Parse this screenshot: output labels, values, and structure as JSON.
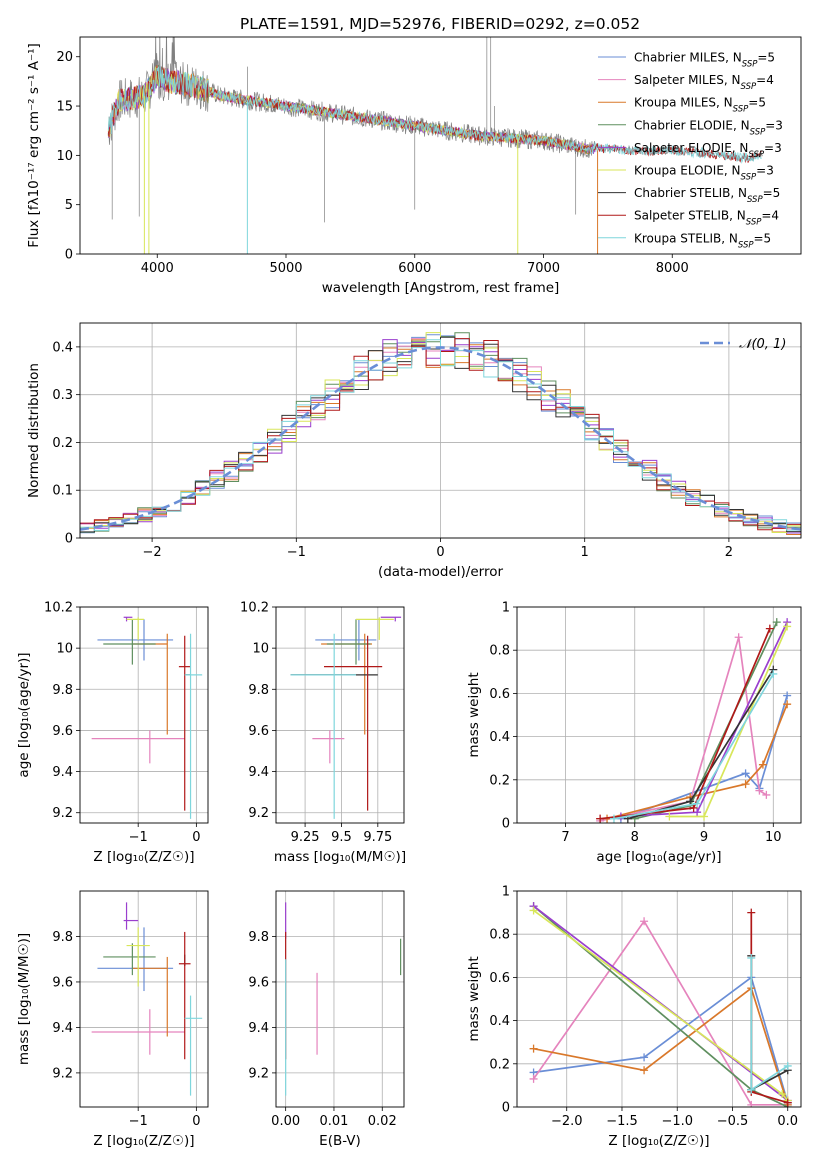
{
  "figure": {
    "title": "PLATE=1591, MJD=52976, FIBERID=0292, z=0.052"
  },
  "series": [
    {
      "name": "Chabrier MILES",
      "nssp": "5",
      "color": "#6a8ed6"
    },
    {
      "name": "Salpeter MILES",
      "nssp": "4",
      "color": "#e584bd"
    },
    {
      "name": "Kroupa MILES",
      "nssp": "5",
      "color": "#d9782a"
    },
    {
      "name": "Chabrier ELODIE",
      "nssp": "3",
      "color": "#5f8f5f"
    },
    {
      "name": "Salpeter ELODIE",
      "nssp": "3",
      "color": "#9a3fce"
    },
    {
      "name": "Kroupa ELODIE",
      "nssp": "3",
      "color": "#d8e65a"
    },
    {
      "name": "Chabrier STELIB",
      "nssp": "5",
      "color": "#333333"
    },
    {
      "name": "Salpeter STELIB",
      "nssp": "4",
      "color": "#b01818"
    },
    {
      "name": "Kroupa STELIB",
      "nssp": "5",
      "color": "#7fd6dc"
    }
  ],
  "chart_data": [
    {
      "id": "spectrum",
      "type": "line",
      "xlabel": "wavelength [Angstrom, rest frame]",
      "ylabel": "Flux [fλ10⁻¹⁷ erg cm⁻² s⁻¹ A⁻¹]",
      "xlim": [
        3400,
        9000
      ],
      "ylim": [
        0,
        22
      ],
      "xticks": [
        4000,
        5000,
        6000,
        7000,
        8000
      ],
      "yticks": [
        0,
        5,
        10,
        15,
        20
      ],
      "data_color": "#808080",
      "continuum_x": [
        3620,
        3700,
        3900,
        4000,
        4100,
        4300,
        4500,
        5000,
        5500,
        6000,
        6500,
        7000,
        7400
      ],
      "continuum_y": [
        12.5,
        15.5,
        16,
        18,
        17.5,
        17,
        16,
        15,
        14,
        13,
        12,
        11.5,
        10.5
      ],
      "tail_x": [
        7400,
        7600,
        7800,
        8000,
        8200,
        8400,
        8600,
        8700
      ],
      "tail_y": [
        10.8,
        10.6,
        10.4,
        10.5,
        10.3,
        10.0,
        9.7,
        10.2
      ],
      "legend_loc": "upper right",
      "grid": false
    },
    {
      "id": "residuals",
      "type": "line",
      "xlabel": "(data-model)/error",
      "ylabel": "Normed distribution",
      "xlim": [
        -2.5,
        2.5
      ],
      "ylim": [
        0,
        0.45
      ],
      "xticks": [
        -2,
        -1,
        0,
        1,
        2
      ],
      "yticks": [
        0,
        0.1,
        0.2,
        0.3,
        0.4
      ],
      "gaussian_label": "𝒩(0, 1)",
      "gaussian_color": "#6a8ed6",
      "gaussian_mu": 0,
      "gaussian_sigma": 1,
      "bin_width": 0.1,
      "grid": true,
      "legend_loc": "upper right"
    },
    {
      "id": "age_vs_z",
      "type": "scatter",
      "xlabel": "Z [log₁₀(Z/Z☉)]",
      "ylabel": "age  [log₁₀(age/yr)]",
      "xlim": [
        -2,
        0.2
      ],
      "ylim": [
        9.15,
        10.2
      ],
      "xticks": [
        -1,
        0
      ],
      "yticks": [
        9.2,
        9.4,
        9.6,
        9.8,
        10.0,
        10.2
      ],
      "points": [
        {
          "s": 0,
          "x": -0.9,
          "xerr": [
            0.8,
            0.5
          ],
          "y": 10.04,
          "yerr": [
            0.1,
            0.1
          ]
        },
        {
          "s": 1,
          "x": -0.8,
          "xerr": [
            1.0,
            0.6
          ],
          "y": 9.56,
          "yerr": [
            0.12,
            0.04
          ]
        },
        {
          "s": 2,
          "x": -0.5,
          "xerr": [
            0.6,
            0.0
          ],
          "y": 10.02,
          "yerr": [
            0.44,
            0.05
          ]
        },
        {
          "s": 3,
          "x": -1.1,
          "xerr": [
            0.5,
            0.4
          ],
          "y": 10.02,
          "yerr": [
            0.1,
            0.12
          ]
        },
        {
          "s": 4,
          "x": -1.2,
          "xerr": [
            0.05,
            0.1
          ],
          "y": 10.15,
          "yerr": [
            0.02,
            0.0
          ]
        },
        {
          "s": 5,
          "x": -1.0,
          "xerr": [
            0.2,
            0.1
          ],
          "y": 10.14,
          "yerr": [
            0.1,
            0.01
          ]
        },
        {
          "s": 6,
          "x": -0.2,
          "xerr": [
            0.0,
            0.1
          ],
          "y": 9.87,
          "yerr": [
            0.0,
            0.0
          ]
        },
        {
          "s": 7,
          "x": -0.2,
          "xerr": [
            0.1,
            0.1
          ],
          "y": 9.91,
          "yerr": [
            0.7,
            0.15
          ]
        },
        {
          "s": 8,
          "x": -0.1,
          "xerr": [
            0.1,
            0.2
          ],
          "y": 9.87,
          "yerr": [
            0.7,
            0.2
          ]
        }
      ],
      "grid": true
    },
    {
      "id": "age_vs_mass",
      "type": "scatter",
      "xlabel": "mass [log₁₀(M/M☉)]",
      "ylabel": "",
      "xlim": [
        9.05,
        9.93
      ],
      "ylim": [
        9.15,
        10.2
      ],
      "xticks": [
        9.25,
        9.5,
        9.75
      ],
      "yticks": [
        9.2,
        9.4,
        9.6,
        9.8,
        10.0,
        10.2
      ],
      "points": [
        {
          "s": 0,
          "x": 9.62,
          "xerr": [
            0.3,
            0.12
          ],
          "y": 10.04,
          "yerr": [
            0.1,
            0.1
          ]
        },
        {
          "s": 1,
          "x": 9.42,
          "xerr": [
            0.12,
            0.1
          ],
          "y": 9.56,
          "yerr": [
            0.12,
            0.04
          ]
        },
        {
          "s": 2,
          "x": 9.66,
          "xerr": [
            0.3,
            0.05
          ],
          "y": 10.02,
          "yerr": [
            0.44,
            0.05
          ]
        },
        {
          "s": 3,
          "x": 9.6,
          "xerr": [
            0.2,
            0.1
          ],
          "y": 10.02,
          "yerr": [
            0.1,
            0.12
          ]
        },
        {
          "s": 4,
          "x": 9.87,
          "xerr": [
            0.1,
            0.04
          ],
          "y": 10.15,
          "yerr": [
            0.02,
            0.0
          ]
        },
        {
          "s": 5,
          "x": 9.76,
          "xerr": [
            0.16,
            0.1
          ],
          "y": 10.14,
          "yerr": [
            0.1,
            0.01
          ]
        },
        {
          "s": 6,
          "x": 9.45,
          "xerr": [
            0.3,
            0.3
          ],
          "y": 9.87,
          "yerr": [
            0.0,
            0.0
          ]
        },
        {
          "s": 7,
          "x": 9.68,
          "xerr": [
            0.3,
            0.1
          ],
          "y": 9.91,
          "yerr": [
            0.7,
            0.15
          ]
        },
        {
          "s": 8,
          "x": 9.45,
          "xerr": [
            0.3,
            0.15
          ],
          "y": 9.87,
          "yerr": [
            0.7,
            0.2
          ]
        }
      ],
      "grid": true
    },
    {
      "id": "weight_vs_age",
      "type": "line",
      "xlabel": "age  [log₁₀(age/yr)]",
      "ylabel": "mass weight",
      "xlim": [
        6.3,
        10.4
      ],
      "ylim": [
        0,
        1
      ],
      "xticks": [
        7,
        8,
        9,
        10
      ],
      "yticks": [
        0,
        0.2,
        0.4,
        0.6,
        0.8,
        1.0
      ],
      "lines": [
        {
          "s": 0,
          "x": [
            7.8,
            9.6,
            9.8,
            10.2
          ],
          "y": [
            0.02,
            0.23,
            0.16,
            0.59
          ]
        },
        {
          "s": 1,
          "x": [
            7.5,
            8.8,
            9.5,
            9.8,
            9.9
          ],
          "y": [
            0.01,
            0.1,
            0.86,
            0.15,
            0.13
          ]
        },
        {
          "s": 2,
          "x": [
            7.6,
            8.8,
            9.6,
            9.85,
            10.2
          ],
          "y": [
            0.02,
            0.12,
            0.18,
            0.27,
            0.55
          ]
        },
        {
          "s": 3,
          "x": [
            8.0,
            8.8,
            10.05
          ],
          "y": [
            0.02,
            0.08,
            0.93
          ]
        },
        {
          "s": 4,
          "x": [
            7.8,
            8.9,
            10.2
          ],
          "y": [
            0.03,
            0.05,
            0.93
          ]
        },
        {
          "s": 5,
          "x": [
            8.5,
            9.0,
            10.2
          ],
          "y": [
            0.03,
            0.03,
            0.91
          ]
        },
        {
          "s": 6,
          "x": [
            7.9,
            8.8,
            10.0
          ],
          "y": [
            0.02,
            0.1,
            0.71
          ]
        },
        {
          "s": 7,
          "x": [
            7.5,
            8.85,
            9.95
          ],
          "y": [
            0.02,
            0.07,
            0.9
          ]
        },
        {
          "s": 8,
          "x": [
            7.7,
            8.9,
            10.0
          ],
          "y": [
            0.02,
            0.09,
            0.69
          ]
        }
      ],
      "grid": true
    },
    {
      "id": "mass_vs_z",
      "type": "scatter",
      "xlabel": "Z [log₁₀(Z/Z☉)]",
      "ylabel": "mass [log₁₀(M/M☉)]",
      "xlim": [
        -2,
        0.2
      ],
      "ylim": [
        9.05,
        10.0
      ],
      "xticks": [
        -1,
        0
      ],
      "yticks": [
        9.2,
        9.4,
        9.6,
        9.8
      ],
      "points": [
        {
          "s": 0,
          "x": -0.9,
          "xerr": [
            0.8,
            0.5
          ],
          "y": 9.66,
          "yerr": [
            0.1,
            0.18
          ]
        },
        {
          "s": 1,
          "x": -0.8,
          "xerr": [
            1.0,
            0.6
          ],
          "y": 9.38,
          "yerr": [
            0.1,
            0.1
          ]
        },
        {
          "s": 2,
          "x": -0.5,
          "xerr": [
            0.6,
            0.0
          ],
          "y": 9.66,
          "yerr": [
            0.3,
            0.05
          ]
        },
        {
          "s": 3,
          "x": -1.1,
          "xerr": [
            0.5,
            0.4
          ],
          "y": 9.71,
          "yerr": [
            0.08,
            0.06
          ]
        },
        {
          "s": 4,
          "x": -1.2,
          "xerr": [
            0.05,
            0.2
          ],
          "y": 9.87,
          "yerr": [
            0.04,
            0.08
          ]
        },
        {
          "s": 5,
          "x": -1.0,
          "xerr": [
            0.2,
            0.2
          ],
          "y": 9.76,
          "yerr": [
            0.18,
            0.08
          ]
        },
        {
          "s": 6,
          "x": -0.2,
          "xerr": [
            0.0,
            0.0
          ],
          "y": 9.67,
          "yerr": [
            0.0,
            0.05
          ]
        },
        {
          "s": 7,
          "x": -0.2,
          "xerr": [
            0.1,
            0.1
          ],
          "y": 9.68,
          "yerr": [
            0.42,
            0.14
          ]
        },
        {
          "s": 8,
          "x": -0.1,
          "xerr": [
            0.1,
            0.2
          ],
          "y": 9.44,
          "yerr": [
            0.34,
            0.1
          ]
        }
      ],
      "grid": true
    },
    {
      "id": "mass_vs_ebv",
      "type": "scatter",
      "xlabel": "E(B-V)",
      "ylabel": "",
      "xlim": [
        -0.002,
        0.0245
      ],
      "ylim": [
        9.05,
        10.0
      ],
      "xticks": [
        0.0,
        0.01,
        0.02
      ],
      "xticklabels": [
        "0.00",
        "0.01",
        "0.02"
      ],
      "yticks": [
        9.2,
        9.4,
        9.6,
        9.8
      ],
      "points": [
        {
          "s": 1,
          "x": 0.0065,
          "xerr": [
            0,
            0
          ],
          "y": 9.46,
          "yerr": [
            0.18,
            0.18
          ]
        },
        {
          "s": 3,
          "x": 0.0238,
          "xerr": [
            0,
            0
          ],
          "y": 9.71,
          "yerr": [
            0.08,
            0.08
          ]
        },
        {
          "s": 4,
          "x": 0.0,
          "xerr": [
            0,
            0
          ],
          "y": 9.87,
          "yerr": [
            0.08,
            0.08
          ]
        },
        {
          "s": 7,
          "x": 0.0,
          "xerr": [
            0,
            0
          ],
          "y": 9.68,
          "yerr": [
            0.42,
            0.14
          ]
        },
        {
          "s": 8,
          "x": 0.0,
          "xerr": [
            0,
            0
          ],
          "y": 9.44,
          "yerr": [
            0.34,
            0.26
          ]
        }
      ],
      "grid": true
    },
    {
      "id": "weight_vs_z",
      "type": "line",
      "xlabel": "Z [log₁₀(Z/Z☉)]",
      "ylabel": "mass weight",
      "xlim": [
        -2.45,
        0.12
      ],
      "ylim": [
        0,
        1
      ],
      "xticks": [
        -2.0,
        -1.5,
        -1.0,
        -0.5,
        0.0
      ],
      "xticklabels": [
        "−2.0",
        "−1.5",
        "−1.0",
        "−0.5",
        "0.0"
      ],
      "yticks": [
        0,
        0.2,
        0.4,
        0.6,
        0.8,
        1.0
      ],
      "lines": [
        {
          "s": 0,
          "x": [
            -2.3,
            -1.3,
            -0.33,
            0.0
          ],
          "y": [
            0.16,
            0.23,
            0.6,
            0.02
          ]
        },
        {
          "s": 1,
          "x": [
            -2.3,
            -1.3,
            -0.33,
            0.0
          ],
          "y": [
            0.13,
            0.86,
            0.01,
            0.01
          ]
        },
        {
          "s": 2,
          "x": [
            -2.3,
            -1.3,
            -0.33,
            0.0
          ],
          "y": [
            0.27,
            0.17,
            0.55,
            0.01
          ]
        },
        {
          "s": 3,
          "x": [
            -2.3,
            -0.33,
            0.0
          ],
          "y": [
            0.93,
            0.08,
            0.0
          ]
        },
        {
          "s": 4,
          "x": [
            -2.3,
            0.0
          ],
          "y": [
            0.93,
            0.03
          ]
        },
        {
          "s": 5,
          "x": [
            -2.3,
            -0.05,
            0.0
          ],
          "y": [
            0.91,
            0.06,
            0.03
          ]
        },
        {
          "s": 6,
          "x": [
            -0.33,
            -0.33,
            0.0
          ],
          "y": [
            0.7,
            0.08,
            0.17
          ]
        },
        {
          "s": 7,
          "x": [
            -0.33,
            -0.33,
            0.0
          ],
          "y": [
            0.9,
            0.07,
            0.02
          ]
        },
        {
          "s": 8,
          "x": [
            -0.33,
            -0.33,
            0.0
          ],
          "y": [
            0.69,
            0.08,
            0.19
          ]
        }
      ],
      "grid": true
    }
  ]
}
